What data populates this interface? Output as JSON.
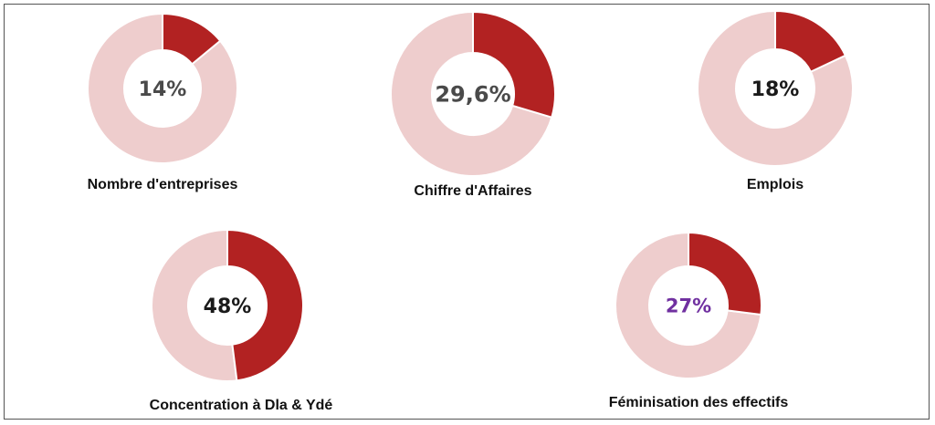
{
  "chart_data": [
    {
      "type": "pie",
      "caption": "Nombre d'entreprises",
      "center_label": "14%",
      "value": 14,
      "label_color": "#4a4a4a"
    },
    {
      "type": "pie",
      "caption": "Chiffre d'Affaires",
      "center_label": "29,6%",
      "value": 29.6,
      "label_color": "#4a4a4a"
    },
    {
      "type": "pie",
      "caption": "Emplois",
      "center_label": "18%",
      "value": 18,
      "label_color": "#1a1a1a"
    },
    {
      "type": "pie",
      "caption": "Concentration à Dla & Ydé",
      "center_label": "48%",
      "value": 48,
      "label_color": "#1a1a1a"
    },
    {
      "type": "pie",
      "caption": "Féminisation des effectifs",
      "center_label": "27%",
      "value": 27,
      "label_color": "#7030a0"
    }
  ],
  "colors": {
    "highlight": "#b22222",
    "remainder": "#eecdcd"
  }
}
